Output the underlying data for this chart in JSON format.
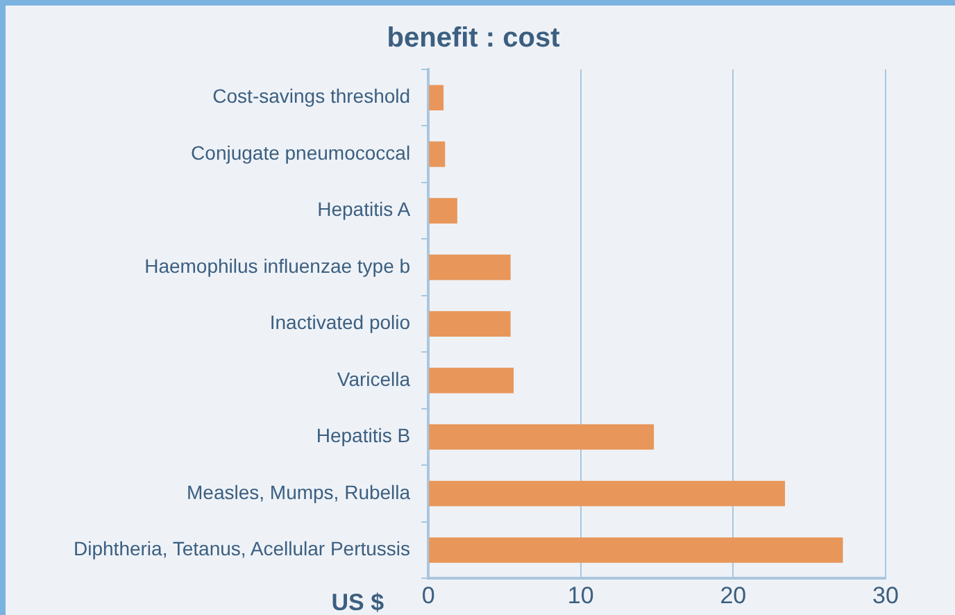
{
  "chart_data": {
    "type": "bar",
    "orientation": "horizontal",
    "title": "benefit : cost",
    "xlabel": "US $",
    "categories": [
      "Cost-savings threshold",
      "Conjugate pneumococcal",
      "Hepatitis A",
      "Haemophilus influenzae type b",
      "Inactivated polio",
      "Varicella",
      "Hepatitis B",
      "Measles, Mumps, Rubella",
      "Diphtheria, Tetanus, Acellular Pertussis"
    ],
    "values": [
      1.0,
      1.1,
      1.9,
      5.4,
      5.4,
      5.6,
      14.8,
      23.4,
      27.2
    ],
    "color": "#e8965a",
    "xlim": [
      0,
      30
    ],
    "xticks": [
      0,
      10,
      20,
      30
    ],
    "grid": "x",
    "legend": false
  }
}
